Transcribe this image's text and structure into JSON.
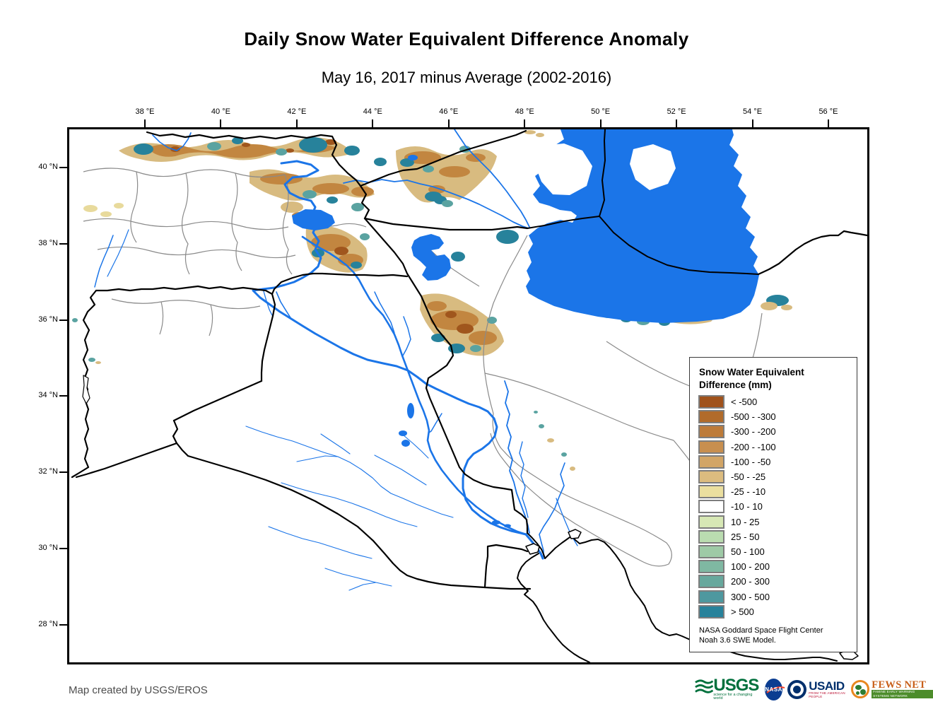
{
  "title": "Daily Snow Water Equivalent Difference Anomaly",
  "subtitle": "May 16, 2017 minus Average (2002-2016)",
  "map": {
    "axes": {
      "top": [
        "38 °E",
        "40 °E",
        "42 °E",
        "44 °E",
        "46 °E",
        "48 °E",
        "50 °E",
        "52 °E",
        "54 °E",
        "56 °E"
      ],
      "left": [
        "40 °N",
        "38 °N",
        "36 °N",
        "34 °N",
        "32 °N",
        "30 °N",
        "28 °N"
      ]
    }
  },
  "legend": {
    "title_line1": "Snow Water Equivalent",
    "title_line2": "Difference (mm)",
    "items": [
      {
        "label": "< -500",
        "color": "#a0521b"
      },
      {
        "label": "-500 - -300",
        "color": "#b16b2b"
      },
      {
        "label": "-300 - -200",
        "color": "#bd7b39"
      },
      {
        "label": "-200 - -100",
        "color": "#c88f4f"
      },
      {
        "label": "-100 - -50",
        "color": "#d2a566"
      },
      {
        "label": "-50 - -25",
        "color": "#dcbc7f"
      },
      {
        "label": "-25 - -10",
        "color": "#ebdf9f"
      },
      {
        "label": "-10 - 10",
        "color": "#ffffff"
      },
      {
        "label": "10 - 25",
        "color": "#d7e8b5"
      },
      {
        "label": "25 - 50",
        "color": "#badcb0"
      },
      {
        "label": "50 - 100",
        "color": "#9ecaa6"
      },
      {
        "label": "100 - 200",
        "color": "#7fb8a2"
      },
      {
        "label": "200 - 300",
        "color": "#67a89d"
      },
      {
        "label": "300 - 500",
        "color": "#4e989f"
      },
      {
        "label": "> 500",
        "color": "#27829b"
      }
    ],
    "note_line1": "NASA Goddard Space Flight Center",
    "note_line2": "Noah 3.6 SWE Model."
  },
  "credit": "Map created by USGS/EROS",
  "logos": {
    "usgs": {
      "label": "USGS",
      "tagline": "science for a changing world"
    },
    "nasa": {
      "label": "NASA"
    },
    "usaid": {
      "label": "USAID",
      "tagline": "FROM THE AMERICAN PEOPLE"
    },
    "fewsnet": {
      "label": "FEWS NET",
      "tagline": "FAMINE EARLY WARNING SYSTEMS NETWORK"
    }
  },
  "colors": {
    "water": "#1b75e8",
    "country_border": "#000000",
    "admin_border": "#8a8a8a",
    "anomaly_negative_dark": "#a0561d",
    "anomaly_negative_mid": "#c28640",
    "anomaly_negative_light": "#d8bb80",
    "anomaly_positive_mid": "#5aa3a1",
    "anomaly_positive_dark": "#27829b"
  }
}
